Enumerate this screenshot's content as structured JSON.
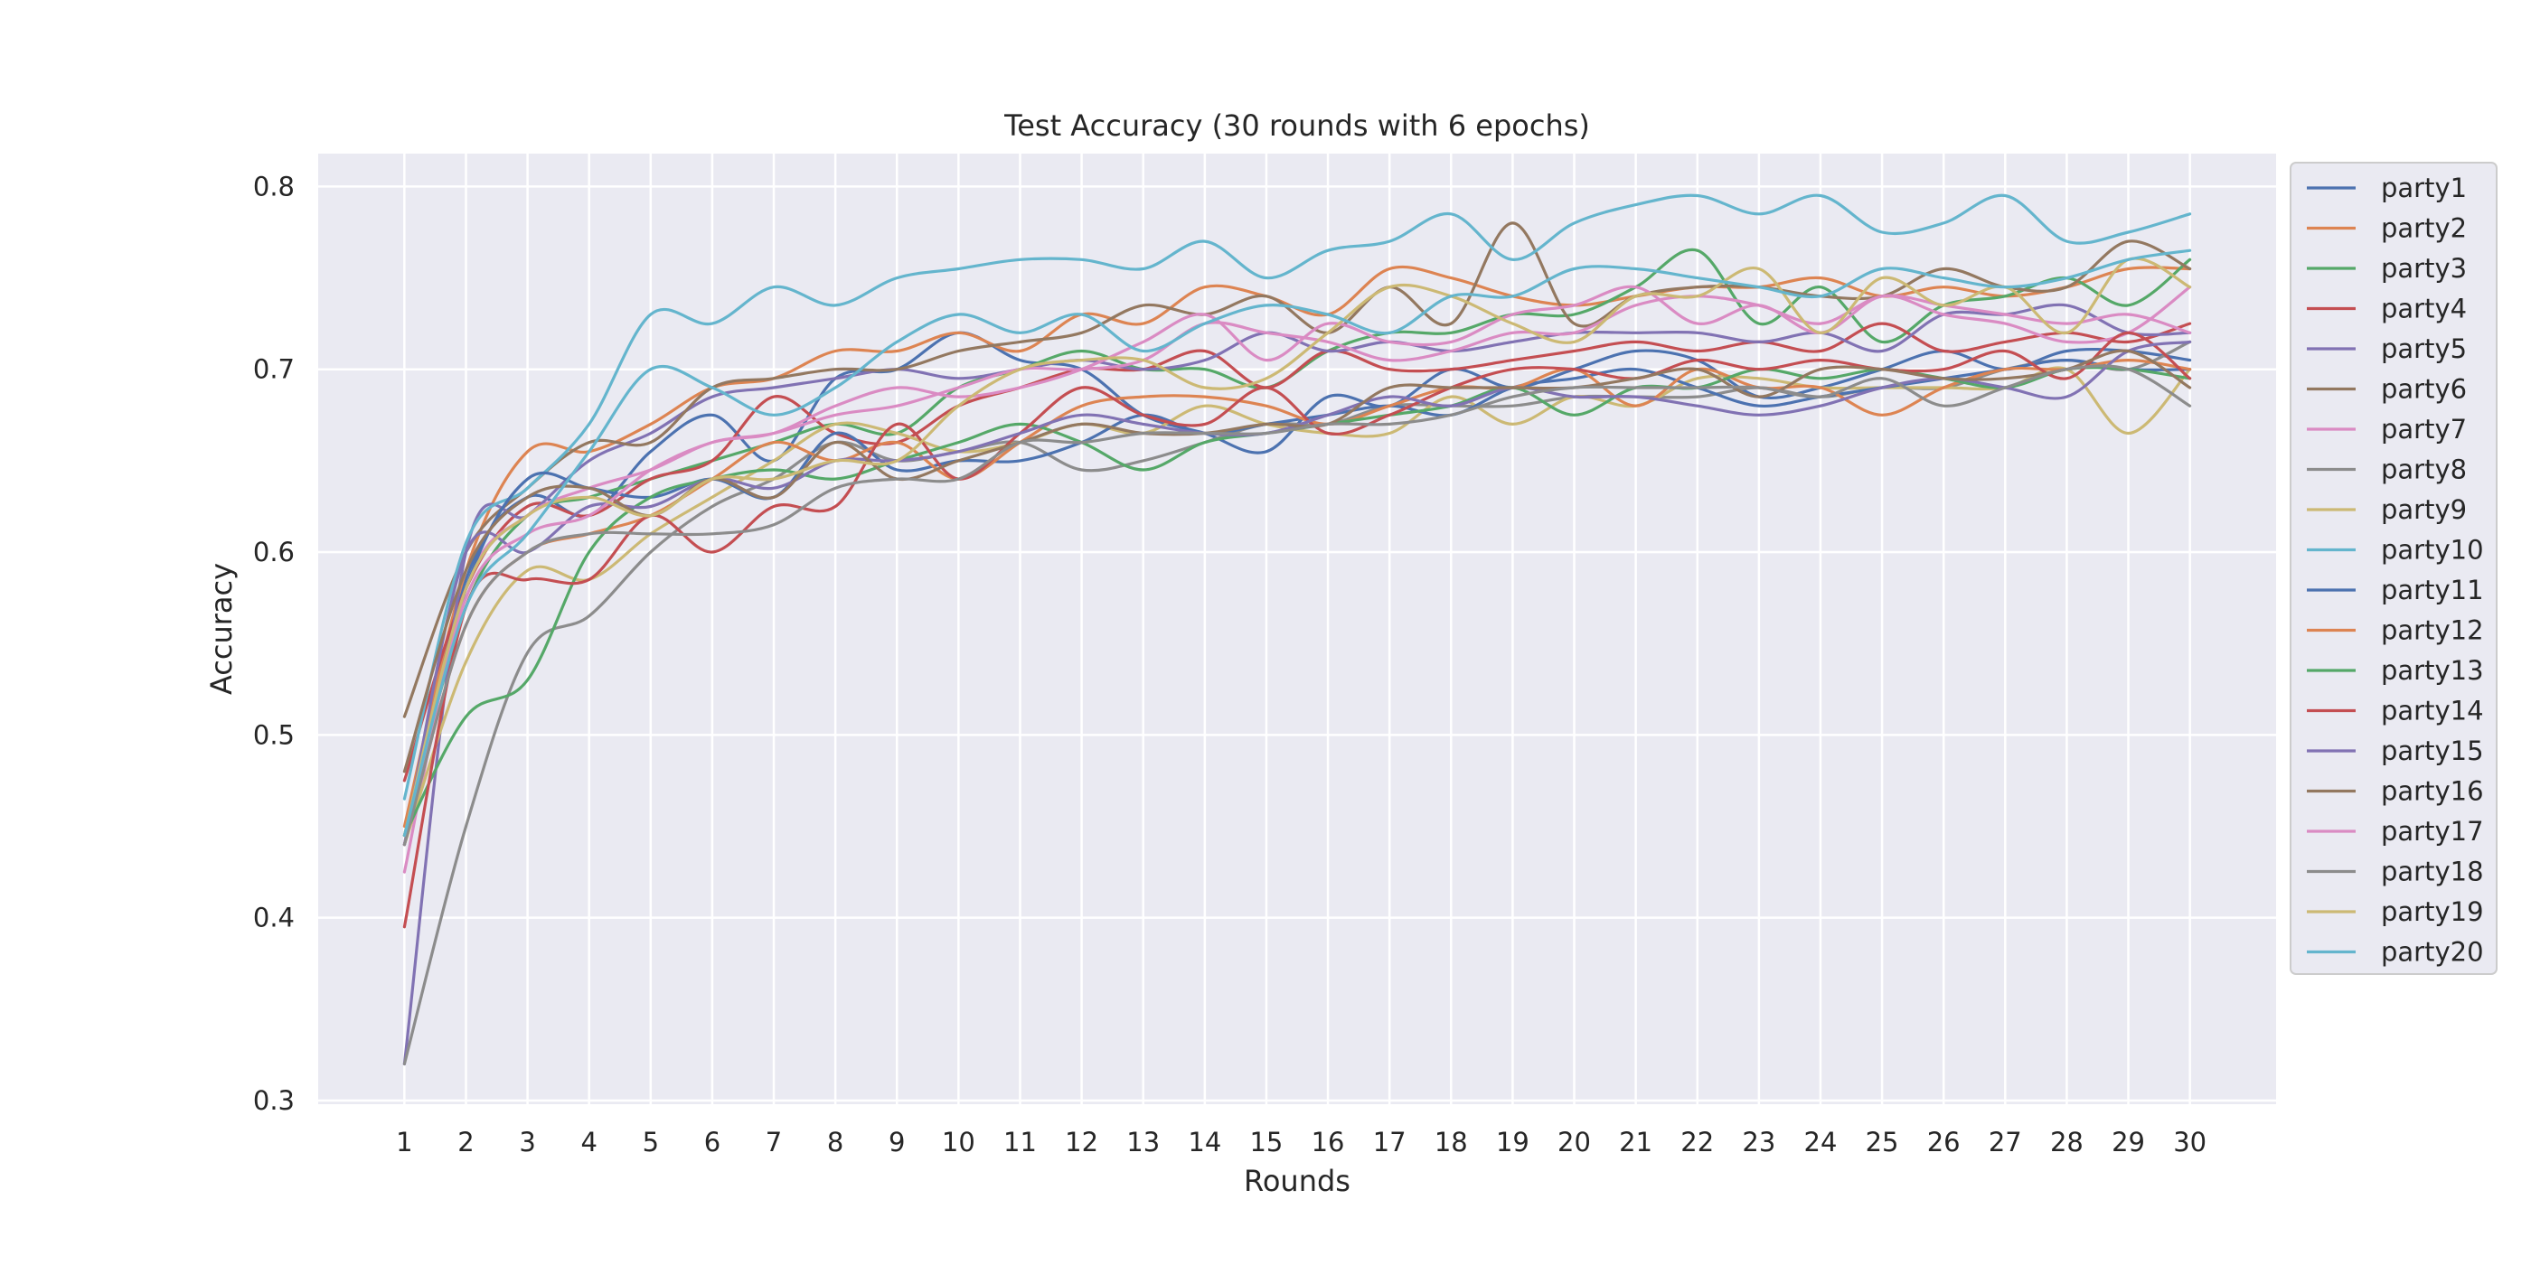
{
  "chart_data": {
    "type": "line",
    "title": "Test Accuracy (30 rounds with 6 epochs)",
    "xlabel": "Rounds",
    "ylabel": "Accuracy",
    "xlim": [
      -0.4,
      31.4
    ],
    "ylim": [
      0.298,
      0.818
    ],
    "yticks": [
      0.3,
      0.4,
      0.5,
      0.6,
      0.7,
      0.8
    ],
    "ytick_labels": [
      "0.3",
      "0.4",
      "0.5",
      "0.6",
      "0.7",
      "0.8"
    ],
    "x": [
      1,
      2,
      3,
      4,
      5,
      6,
      7,
      8,
      9,
      10,
      11,
      12,
      13,
      14,
      15,
      16,
      17,
      18,
      19,
      20,
      21,
      22,
      23,
      24,
      25,
      26,
      27,
      28,
      29,
      30
    ],
    "x_labels": [
      "1",
      "2",
      "3",
      "4",
      "5",
      "6",
      "7",
      "8",
      "9",
      "10",
      "11",
      "12",
      "13",
      "14",
      "15",
      "16",
      "17",
      "18",
      "19",
      "20",
      "21",
      "22",
      "23",
      "24",
      "25",
      "26",
      "27",
      "28",
      "29",
      "30"
    ],
    "grid": true,
    "legend_position": "outside-right",
    "background": "#eaeaf2",
    "series": [
      {
        "name": "party1",
        "color": "#4c72b0",
        "values": [
          0.44,
          0.585,
          0.63,
          0.62,
          0.655,
          0.675,
          0.65,
          0.695,
          0.7,
          0.72,
          0.705,
          0.7,
          0.675,
          0.665,
          0.655,
          0.685,
          0.68,
          0.7,
          0.69,
          0.7,
          0.71,
          0.705,
          0.685,
          0.69,
          0.7,
          0.71,
          0.7,
          0.71,
          0.71,
          0.705
        ]
      },
      {
        "name": "party2",
        "color": "#dd8452",
        "values": [
          0.45,
          0.59,
          0.655,
          0.655,
          0.67,
          0.69,
          0.695,
          0.71,
          0.71,
          0.72,
          0.71,
          0.73,
          0.725,
          0.745,
          0.74,
          0.73,
          0.755,
          0.75,
          0.74,
          0.735,
          0.74,
          0.745,
          0.745,
          0.75,
          0.74,
          0.745,
          0.74,
          0.745,
          0.755,
          0.755
        ]
      },
      {
        "name": "party3",
        "color": "#55a868",
        "values": [
          0.445,
          0.57,
          0.62,
          0.63,
          0.64,
          0.65,
          0.66,
          0.67,
          0.665,
          0.69,
          0.7,
          0.71,
          0.7,
          0.7,
          0.69,
          0.71,
          0.72,
          0.72,
          0.73,
          0.73,
          0.745,
          0.765,
          0.725,
          0.745,
          0.715,
          0.735,
          0.74,
          0.75,
          0.735,
          0.76
        ]
      },
      {
        "name": "party4",
        "color": "#c44e52",
        "values": [
          0.475,
          0.58,
          0.625,
          0.62,
          0.64,
          0.65,
          0.685,
          0.665,
          0.66,
          0.68,
          0.69,
          0.7,
          0.7,
          0.71,
          0.69,
          0.71,
          0.7,
          0.7,
          0.705,
          0.71,
          0.715,
          0.71,
          0.715,
          0.71,
          0.725,
          0.71,
          0.715,
          0.72,
          0.715,
          0.725
        ]
      },
      {
        "name": "party5",
        "color": "#8172b3",
        "values": [
          0.32,
          0.6,
          0.62,
          0.65,
          0.665,
          0.685,
          0.69,
          0.695,
          0.7,
          0.695,
          0.7,
          0.705,
          0.7,
          0.705,
          0.72,
          0.71,
          0.715,
          0.71,
          0.715,
          0.72,
          0.72,
          0.72,
          0.715,
          0.72,
          0.71,
          0.73,
          0.73,
          0.735,
          0.72,
          0.72
        ]
      },
      {
        "name": "party6",
        "color": "#937860",
        "values": [
          0.51,
          0.6,
          0.635,
          0.66,
          0.66,
          0.69,
          0.695,
          0.7,
          0.7,
          0.71,
          0.715,
          0.72,
          0.735,
          0.73,
          0.74,
          0.72,
          0.745,
          0.725,
          0.78,
          0.725,
          0.74,
          0.745,
          0.745,
          0.74,
          0.74,
          0.755,
          0.745,
          0.745,
          0.77,
          0.755
        ]
      },
      {
        "name": "party7",
        "color": "#da8bc3",
        "values": [
          0.425,
          0.58,
          0.62,
          0.635,
          0.645,
          0.66,
          0.665,
          0.68,
          0.69,
          0.685,
          0.69,
          0.7,
          0.715,
          0.73,
          0.705,
          0.725,
          0.715,
          0.715,
          0.73,
          0.735,
          0.745,
          0.725,
          0.735,
          0.72,
          0.74,
          0.73,
          0.725,
          0.715,
          0.72,
          0.745
        ]
      },
      {
        "name": "party8",
        "color": "#8c8c8c",
        "values": [
          0.32,
          0.45,
          0.545,
          0.565,
          0.6,
          0.625,
          0.64,
          0.66,
          0.65,
          0.655,
          0.66,
          0.645,
          0.65,
          0.66,
          0.67,
          0.67,
          0.68,
          0.68,
          0.68,
          0.685,
          0.685,
          0.685,
          0.69,
          0.685,
          0.69,
          0.69,
          0.7,
          0.705,
          0.7,
          0.715
        ]
      },
      {
        "name": "party9",
        "color": "#ccb974",
        "values": [
          0.44,
          0.54,
          0.59,
          0.585,
          0.61,
          0.63,
          0.65,
          0.67,
          0.665,
          0.655,
          0.66,
          0.67,
          0.665,
          0.68,
          0.67,
          0.665,
          0.665,
          0.685,
          0.67,
          0.685,
          0.68,
          0.695,
          0.695,
          0.69,
          0.69,
          0.69,
          0.69,
          0.7,
          0.665,
          0.7
        ]
      },
      {
        "name": "party10",
        "color": "#64b5cd",
        "values": [
          0.465,
          0.605,
          0.635,
          0.67,
          0.73,
          0.725,
          0.745,
          0.735,
          0.75,
          0.755,
          0.76,
          0.76,
          0.755,
          0.77,
          0.75,
          0.765,
          0.77,
          0.785,
          0.76,
          0.78,
          0.79,
          0.795,
          0.785,
          0.795,
          0.775,
          0.78,
          0.795,
          0.77,
          0.775,
          0.785
        ]
      },
      {
        "name": "party11",
        "color": "#4c72b0",
        "values": [
          0.44,
          0.58,
          0.64,
          0.635,
          0.63,
          0.64,
          0.63,
          0.665,
          0.645,
          0.65,
          0.65,
          0.66,
          0.675,
          0.665,
          0.67,
          0.675,
          0.68,
          0.675,
          0.69,
          0.695,
          0.7,
          0.69,
          0.68,
          0.685,
          0.69,
          0.695,
          0.7,
          0.705,
          0.7,
          0.7
        ]
      },
      {
        "name": "party12",
        "color": "#dd8452",
        "values": [
          0.44,
          0.56,
          0.6,
          0.61,
          0.62,
          0.64,
          0.66,
          0.65,
          0.66,
          0.64,
          0.66,
          0.68,
          0.685,
          0.685,
          0.68,
          0.67,
          0.68,
          0.69,
          0.69,
          0.7,
          0.68,
          0.7,
          0.69,
          0.69,
          0.675,
          0.69,
          0.7,
          0.7,
          0.705,
          0.7
        ]
      },
      {
        "name": "party13",
        "color": "#55a868",
        "values": [
          0.445,
          0.51,
          0.53,
          0.6,
          0.63,
          0.64,
          0.645,
          0.64,
          0.65,
          0.66,
          0.67,
          0.66,
          0.645,
          0.66,
          0.665,
          0.67,
          0.675,
          0.68,
          0.69,
          0.675,
          0.69,
          0.69,
          0.7,
          0.695,
          0.7,
          0.695,
          0.69,
          0.7,
          0.7,
          0.695
        ]
      },
      {
        "name": "party14",
        "color": "#c44e52",
        "values": [
          0.395,
          0.57,
          0.585,
          0.585,
          0.62,
          0.6,
          0.625,
          0.625,
          0.67,
          0.64,
          0.665,
          0.69,
          0.675,
          0.67,
          0.69,
          0.665,
          0.675,
          0.69,
          0.7,
          0.7,
          0.695,
          0.705,
          0.7,
          0.705,
          0.7,
          0.7,
          0.71,
          0.695,
          0.72,
          0.695
        ]
      },
      {
        "name": "party15",
        "color": "#8172b3",
        "values": [
          0.44,
          0.6,
          0.6,
          0.625,
          0.625,
          0.64,
          0.635,
          0.65,
          0.65,
          0.655,
          0.665,
          0.675,
          0.67,
          0.665,
          0.665,
          0.675,
          0.685,
          0.68,
          0.69,
          0.685,
          0.685,
          0.68,
          0.675,
          0.68,
          0.69,
          0.695,
          0.69,
          0.685,
          0.71,
          0.715
        ]
      },
      {
        "name": "party16",
        "color": "#937860",
        "values": [
          0.48,
          0.59,
          0.63,
          0.635,
          0.62,
          0.64,
          0.63,
          0.66,
          0.64,
          0.65,
          0.66,
          0.67,
          0.665,
          0.665,
          0.67,
          0.67,
          0.69,
          0.69,
          0.69,
          0.69,
          0.695,
          0.7,
          0.685,
          0.7,
          0.7,
          0.695,
          0.695,
          0.7,
          0.71,
          0.69
        ]
      },
      {
        "name": "party17",
        "color": "#da8bc3",
        "values": [
          0.44,
          0.575,
          0.61,
          0.62,
          0.645,
          0.66,
          0.665,
          0.675,
          0.68,
          0.69,
          0.7,
          0.7,
          0.705,
          0.725,
          0.72,
          0.715,
          0.705,
          0.71,
          0.72,
          0.72,
          0.735,
          0.74,
          0.735,
          0.725,
          0.74,
          0.735,
          0.73,
          0.725,
          0.73,
          0.72
        ]
      },
      {
        "name": "party18",
        "color": "#8c8c8c",
        "values": [
          0.44,
          0.56,
          0.6,
          0.61,
          0.61,
          0.61,
          0.615,
          0.635,
          0.64,
          0.64,
          0.66,
          0.66,
          0.665,
          0.665,
          0.665,
          0.67,
          0.67,
          0.675,
          0.685,
          0.69,
          0.69,
          0.69,
          0.69,
          0.685,
          0.695,
          0.68,
          0.69,
          0.7,
          0.7,
          0.68
        ]
      },
      {
        "name": "party19",
        "color": "#ccb974",
        "values": [
          0.445,
          0.58,
          0.62,
          0.63,
          0.62,
          0.64,
          0.64,
          0.65,
          0.65,
          0.68,
          0.7,
          0.705,
          0.705,
          0.69,
          0.695,
          0.72,
          0.745,
          0.74,
          0.725,
          0.715,
          0.74,
          0.74,
          0.755,
          0.72,
          0.75,
          0.735,
          0.745,
          0.72,
          0.76,
          0.745
        ]
      },
      {
        "name": "party20",
        "color": "#64b5cd",
        "values": [
          0.445,
          0.57,
          0.61,
          0.655,
          0.7,
          0.69,
          0.675,
          0.69,
          0.715,
          0.73,
          0.72,
          0.73,
          0.71,
          0.725,
          0.735,
          0.73,
          0.72,
          0.74,
          0.74,
          0.755,
          0.755,
          0.75,
          0.745,
          0.74,
          0.755,
          0.75,
          0.745,
          0.75,
          0.76,
          0.765
        ]
      }
    ]
  }
}
